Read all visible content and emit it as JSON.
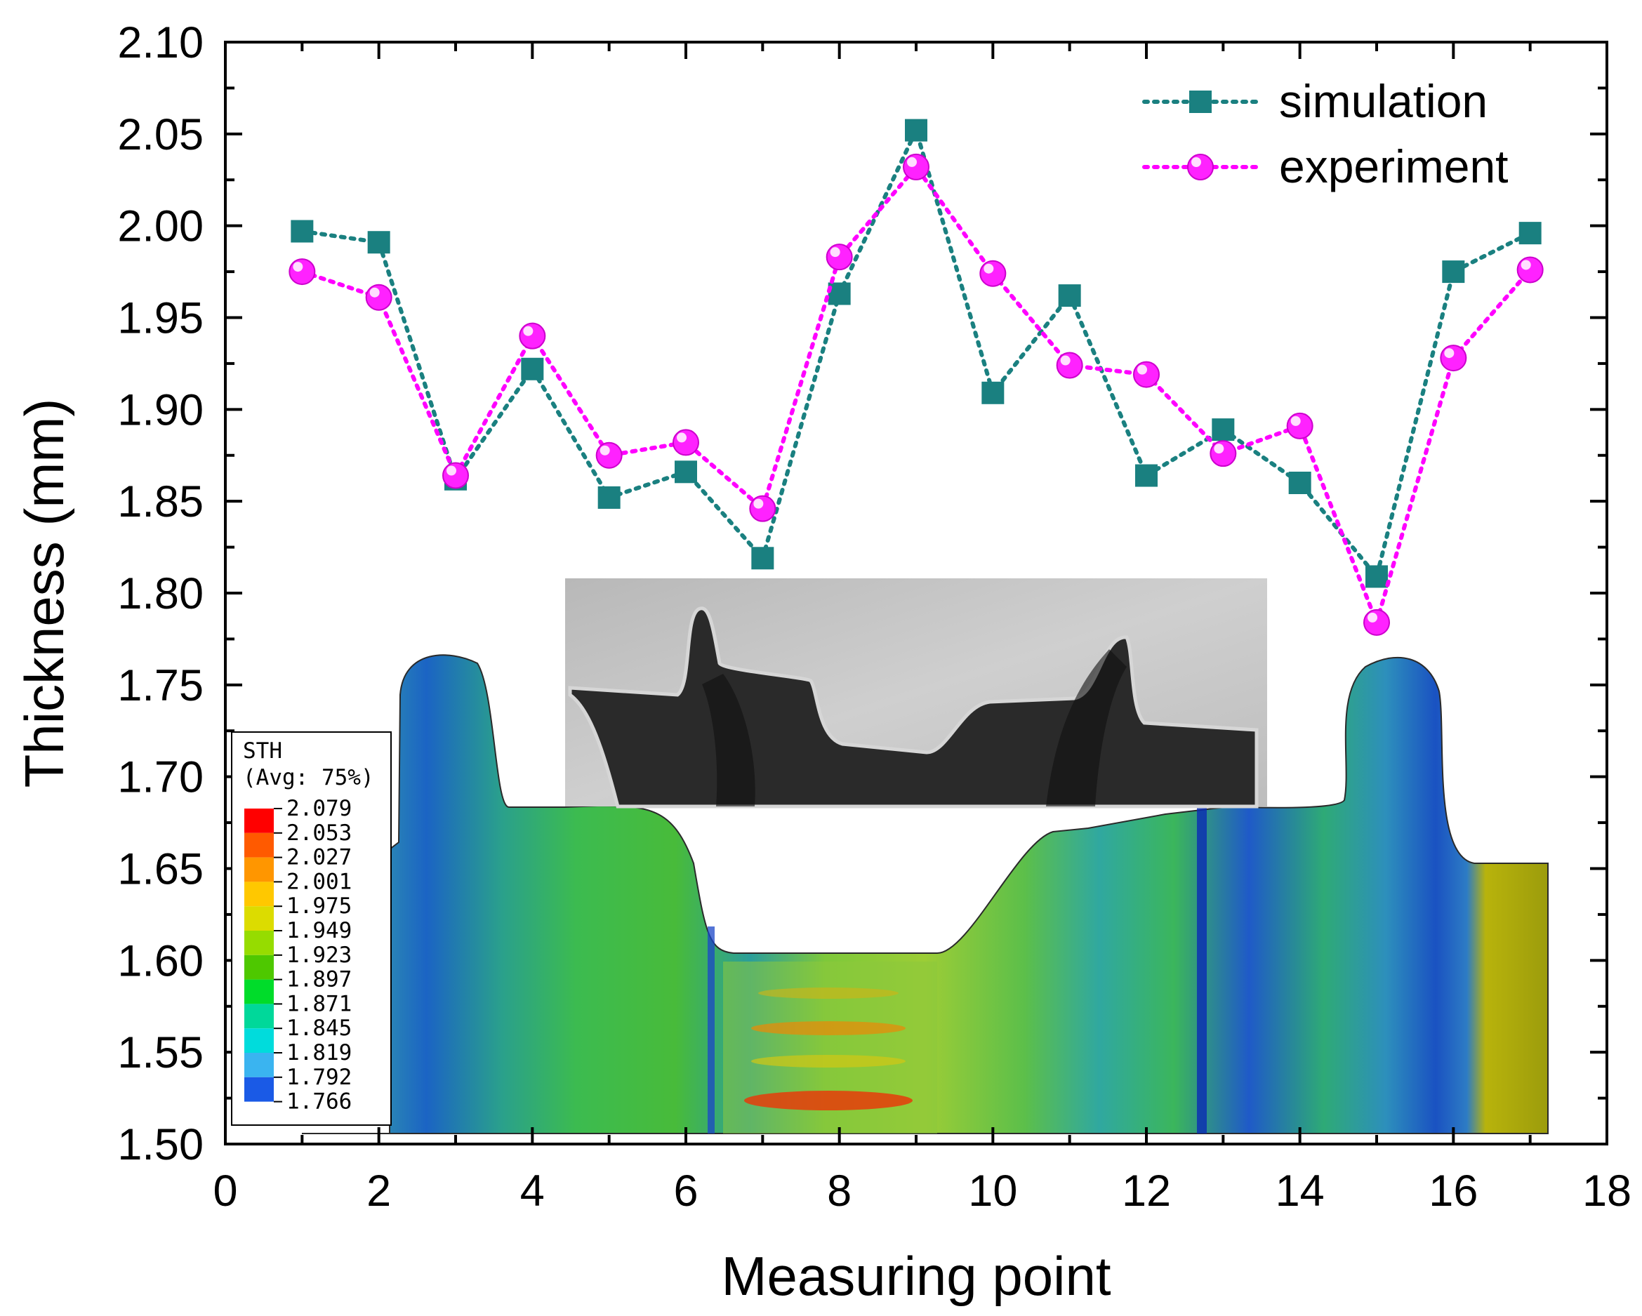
{
  "chart_data": {
    "type": "line",
    "title": "",
    "xlabel": "Measuring point",
    "ylabel": "Thickness (mm)",
    "xlim": [
      0,
      18
    ],
    "ylim": [
      1.5,
      2.1
    ],
    "xticks": [
      "0",
      "2",
      "4",
      "6",
      "8",
      "10",
      "12",
      "14",
      "16",
      "18"
    ],
    "yticks": [
      "1.50",
      "1.55",
      "1.60",
      "1.65",
      "1.70",
      "1.75",
      "1.80",
      "1.85",
      "1.90",
      "1.95",
      "2.00",
      "2.05",
      "2.10"
    ],
    "legend_position": "top-right",
    "x": [
      1,
      2,
      3,
      4,
      5,
      6,
      7,
      8,
      9,
      10,
      11,
      12,
      13,
      14,
      15,
      16,
      17
    ],
    "series": [
      {
        "name": "simulation",
        "color": "#1a8080",
        "marker": "square",
        "values": [
          1.997,
          1.991,
          1.862,
          1.922,
          1.852,
          1.866,
          1.819,
          1.963,
          2.052,
          1.909,
          1.962,
          1.864,
          1.889,
          1.86,
          1.809,
          1.975,
          1.996
        ]
      },
      {
        "name": "experiment",
        "color": "#ff00ff",
        "marker": "circle",
        "values": [
          1.975,
          1.961,
          1.864,
          1.94,
          1.875,
          1.882,
          1.846,
          1.983,
          2.032,
          1.974,
          1.924,
          1.919,
          1.876,
          1.891,
          1.784,
          1.928,
          1.976
        ]
      }
    ],
    "inset_colorbar": {
      "title": "STH",
      "subtitle": "(Avg: 75%)",
      "levels": [
        "2.079",
        "2.053",
        "2.027",
        "2.001",
        "1.975",
        "1.949",
        "1.923",
        "1.897",
        "1.871",
        "1.845",
        "1.819",
        "1.792",
        "1.766"
      ],
      "colors": [
        "#ff0000",
        "#ff5a00",
        "#ff9600",
        "#ffc800",
        "#dcdc00",
        "#96dc00",
        "#4ec800",
        "#00dc2a",
        "#00d89a",
        "#00dcdc",
        "#3ab4f0",
        "#1a5ae6",
        "#0000ff"
      ]
    }
  }
}
